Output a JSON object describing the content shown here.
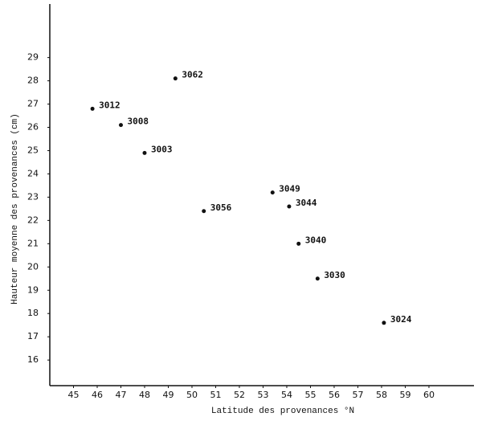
{
  "chart_data": {
    "type": "scatter",
    "xlabel": "Latitude des provenances °N",
    "ylabel": "Hauteur moyenne des provenances (cm)",
    "labels": [
      "3062",
      "3012",
      "3008",
      "3003",
      "3049",
      "3044",
      "3056",
      "3040",
      "3030",
      "3024"
    ],
    "x": [
      49.3,
      45.8,
      47.0,
      48.0,
      53.4,
      54.1,
      50.5,
      54.5,
      55.3,
      58.1
    ],
    "y": [
      28.1,
      26.8,
      26.1,
      24.9,
      23.2,
      22.6,
      22.4,
      21.0,
      19.5,
      17.6
    ],
    "color": "#111111",
    "xlim": [
      44,
      61.9
    ],
    "ylim": [
      14.9,
      31.3
    ],
    "xticks": [
      45,
      46,
      47,
      48,
      49,
      50,
      51,
      52,
      53,
      54,
      55,
      56,
      57,
      58,
      59,
      60
    ],
    "yticks": [
      16,
      17,
      18,
      19,
      20,
      21,
      22,
      23,
      24,
      25,
      26,
      27,
      28,
      29
    ],
    "grid": false
  }
}
